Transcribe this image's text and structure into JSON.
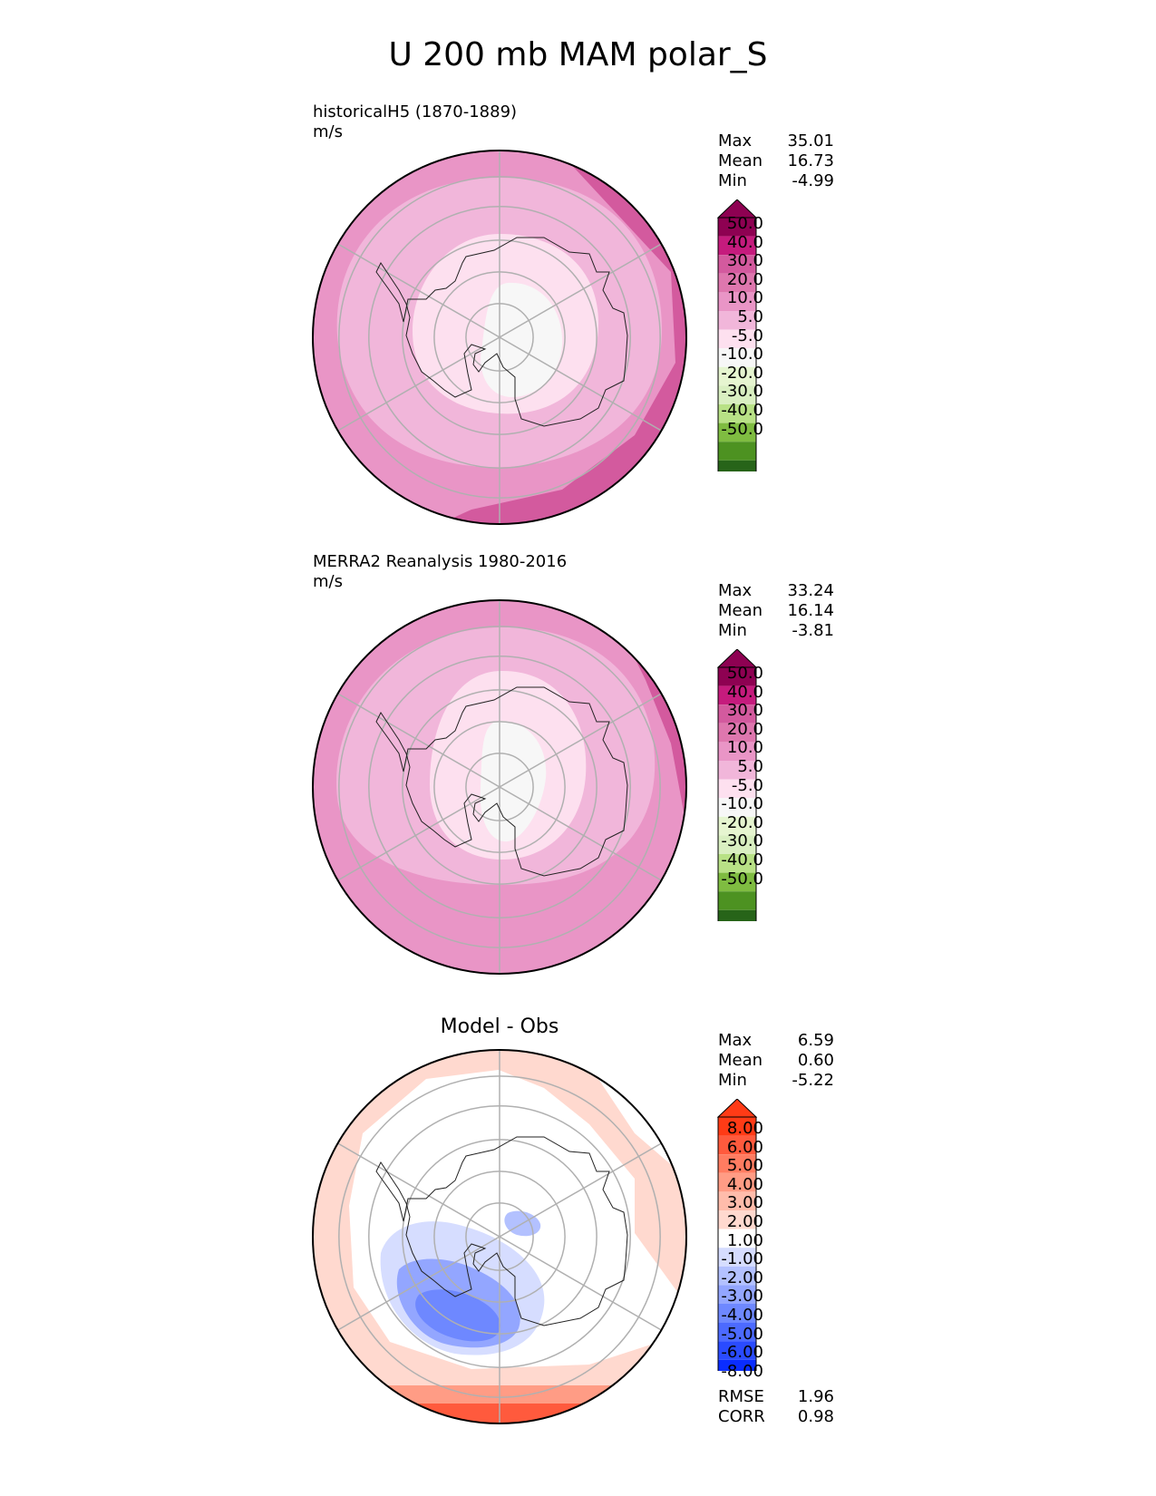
{
  "figure": {
    "title": "U 200 mb MAM polar_S"
  },
  "palettes": {
    "pink_green": [
      "#276419",
      "#4d9221",
      "#7fbc41",
      "#b8e186",
      "#d9efc1",
      "#e6f5d0",
      "#f7f7f7",
      "#fde0ef",
      "#f1b6da",
      "#e995c6",
      "#de77ae",
      "#d35a9e",
      "#c51b7d",
      "#8e0152"
    ],
    "diff": [
      "#0a2dff",
      "#2a4bff",
      "#4c6aff",
      "#6e88ff",
      "#93a6ff",
      "#b3c1ff",
      "#d6ddff",
      "#ffffff",
      "#ffd9cf",
      "#ffbcab",
      "#ff9c85",
      "#ff7c61",
      "#ff5a3d",
      "#ff3b16"
    ]
  },
  "chart_data": [
    {
      "type": "heatmap",
      "panel": "test",
      "title": "historicalH5 (1870-1889)",
      "units": "m/s",
      "projection": "south polar stereographic",
      "stats": {
        "max_label": "Max",
        "max": "35.01",
        "mean_label": "Mean",
        "mean": "16.73",
        "min_label": "Min",
        "min": "-4.99"
      },
      "colorbar": {
        "extend": "both",
        "ticks": [
          "50.0",
          "40.0",
          "30.0",
          "20.0",
          "10.0",
          "5.0",
          "-5.0",
          "-10.0",
          "-20.0",
          "-30.0",
          "-40.0",
          "-50.0"
        ]
      }
    },
    {
      "type": "heatmap",
      "panel": "reference",
      "title": "MERRA2 Reanalysis 1980-2016",
      "units": "m/s",
      "projection": "south polar stereographic",
      "stats": {
        "max_label": "Max",
        "max": "33.24",
        "mean_label": "Mean",
        "mean": "16.14",
        "min_label": "Min",
        "min": "-3.81"
      },
      "colorbar": {
        "extend": "both",
        "ticks": [
          "50.0",
          "40.0",
          "30.0",
          "20.0",
          "10.0",
          "5.0",
          "-5.0",
          "-10.0",
          "-20.0",
          "-30.0",
          "-40.0",
          "-50.0"
        ]
      }
    },
    {
      "type": "heatmap",
      "panel": "difference",
      "title": "Model - Obs",
      "projection": "south polar stereographic",
      "stats": {
        "max_label": "Max",
        "max": "6.59",
        "mean_label": "Mean",
        "mean": "0.60",
        "min_label": "Min",
        "min": "-5.22"
      },
      "colorbar": {
        "extend": "both",
        "ticks": [
          "8.00",
          "6.00",
          "5.00",
          "4.00",
          "3.00",
          "2.00",
          "1.00",
          "-1.00",
          "-2.00",
          "-3.00",
          "-4.00",
          "-5.00",
          "-6.00",
          "-8.00"
        ]
      },
      "metrics": {
        "rmse_label": "RMSE",
        "rmse": "1.96",
        "corr_label": "CORR",
        "corr": "0.98"
      }
    }
  ]
}
